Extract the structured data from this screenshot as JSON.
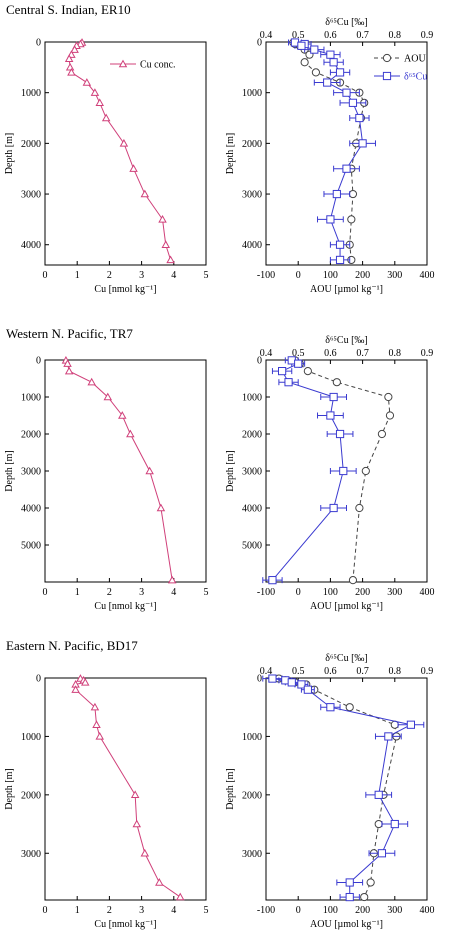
{
  "chart_data": [
    {
      "type": "line",
      "title": "Central S. Indian, ER10",
      "left": {
        "xlabel": "Cu [nmol kg⁻¹]",
        "ylabel": "Depth [m]",
        "xlim": [
          0,
          5
        ],
        "xticks": [
          "0",
          "1",
          "2",
          "3",
          "4",
          "5"
        ],
        "ylim": [
          0,
          4400
        ],
        "yticks": [
          "0",
          "1000",
          "2000",
          "3000",
          "4000"
        ],
        "legend": "Cu conc.",
        "series": [
          {
            "depth": 10,
            "cu": 1.15
          },
          {
            "depth": 40,
            "cu": 1.1
          },
          {
            "depth": 75,
            "cu": 0.98
          },
          {
            "depth": 150,
            "cu": 0.92
          },
          {
            "depth": 250,
            "cu": 0.82
          },
          {
            "depth": 330,
            "cu": 0.75
          },
          {
            "depth": 500,
            "cu": 0.78
          },
          {
            "depth": 600,
            "cu": 0.82
          },
          {
            "depth": 800,
            "cu": 1.3
          },
          {
            "depth": 1000,
            "cu": 1.55
          },
          {
            "depth": 1200,
            "cu": 1.7
          },
          {
            "depth": 1500,
            "cu": 1.9
          },
          {
            "depth": 2000,
            "cu": 2.45
          },
          {
            "depth": 2500,
            "cu": 2.75
          },
          {
            "depth": 3000,
            "cu": 3.1
          },
          {
            "depth": 3500,
            "cu": 3.65
          },
          {
            "depth": 4000,
            "cu": 3.75
          },
          {
            "depth": 4300,
            "cu": 3.9
          }
        ]
      },
      "right": {
        "toplabel": "δ⁶⁵Cu [‰]",
        "xlabel": "AOU [µmol kg⁻¹]",
        "ylabel": "Depth [m]",
        "topxlim": [
          0.4,
          0.9
        ],
        "topxticks": [
          "0.4",
          "0.5",
          "0.6",
          "0.7",
          "0.8",
          "0.9"
        ],
        "xlim": [
          -100,
          400
        ],
        "xticks": [
          "-100",
          "0",
          "100",
          "200",
          "300",
          "400"
        ],
        "ylim": [
          0,
          4400
        ],
        "yticks": [
          "0",
          "1000",
          "2000",
          "3000",
          "4000"
        ],
        "legend_aou": "AOU",
        "legend_d65": "δ⁶⁵Cu",
        "aou": [
          {
            "depth": 10,
            "aou": -15
          },
          {
            "depth": 40,
            "aou": -10
          },
          {
            "depth": 75,
            "aou": 5
          },
          {
            "depth": 150,
            "aou": 20
          },
          {
            "depth": 250,
            "aou": 35
          },
          {
            "depth": 400,
            "aou": 20
          },
          {
            "depth": 600,
            "aou": 55
          },
          {
            "depth": 800,
            "aou": 130
          },
          {
            "depth": 1000,
            "aou": 190
          },
          {
            "depth": 1200,
            "aou": 205
          },
          {
            "depth": 1500,
            "aou": 195
          },
          {
            "depth": 2000,
            "aou": 180
          },
          {
            "depth": 2500,
            "aou": 165
          },
          {
            "depth": 3000,
            "aou": 170
          },
          {
            "depth": 3500,
            "aou": 165
          },
          {
            "depth": 4000,
            "aou": 160
          },
          {
            "depth": 4300,
            "aou": 165
          }
        ],
        "d65": [
          {
            "depth": 10,
            "v": 0.49,
            "err": 0.02
          },
          {
            "depth": 40,
            "v": 0.52,
            "err": 0.02
          },
          {
            "depth": 75,
            "v": 0.51,
            "err": 0.02
          },
          {
            "depth": 150,
            "v": 0.55,
            "err": 0.03
          },
          {
            "depth": 250,
            "v": 0.6,
            "err": 0.03
          },
          {
            "depth": 400,
            "v": 0.61,
            "err": 0.03
          },
          {
            "depth": 600,
            "v": 0.63,
            "err": 0.03
          },
          {
            "depth": 800,
            "v": 0.59,
            "err": 0.04
          },
          {
            "depth": 1000,
            "v": 0.65,
            "err": 0.04
          },
          {
            "depth": 1200,
            "v": 0.67,
            "err": 0.04
          },
          {
            "depth": 1500,
            "v": 0.69,
            "err": 0.03
          },
          {
            "depth": 2000,
            "v": 0.7,
            "err": 0.04
          },
          {
            "depth": 2500,
            "v": 0.65,
            "err": 0.04
          },
          {
            "depth": 3000,
            "v": 0.62,
            "err": 0.04
          },
          {
            "depth": 3500,
            "v": 0.6,
            "err": 0.04
          },
          {
            "depth": 4000,
            "v": 0.63,
            "err": 0.03
          },
          {
            "depth": 4300,
            "v": 0.63,
            "err": 0.03
          }
        ]
      }
    },
    {
      "type": "line",
      "title": "Western N. Pacific, TR7",
      "left": {
        "xlabel": "Cu [nmol kg⁻¹]",
        "ylabel": "Depth [m]",
        "xlim": [
          0,
          5
        ],
        "xticks": [
          "0",
          "1",
          "2",
          "3",
          "4",
          "5"
        ],
        "ylim": [
          0,
          6000
        ],
        "yticks": [
          "0",
          "1000",
          "2000",
          "3000",
          "4000",
          "5000"
        ],
        "legend": "",
        "series": [
          {
            "depth": 10,
            "cu": 0.65
          },
          {
            "depth": 100,
            "cu": 0.7
          },
          {
            "depth": 300,
            "cu": 0.75
          },
          {
            "depth": 600,
            "cu": 1.45
          },
          {
            "depth": 1000,
            "cu": 1.95
          },
          {
            "depth": 1500,
            "cu": 2.4
          },
          {
            "depth": 2000,
            "cu": 2.65
          },
          {
            "depth": 3000,
            "cu": 3.25
          },
          {
            "depth": 4000,
            "cu": 3.6
          },
          {
            "depth": 5950,
            "cu": 3.95
          }
        ]
      },
      "right": {
        "toplabel": "δ⁶⁵Cu [‰]",
        "xlabel": "AOU [µmol kg⁻¹]",
        "ylabel": "Depth [m]",
        "topxlim": [
          0.4,
          0.9
        ],
        "topxticks": [
          "0.4",
          "0.5",
          "0.6",
          "0.7",
          "0.8",
          "0.9"
        ],
        "xlim": [
          -100,
          400
        ],
        "xticks": [
          "-100",
          "0",
          "100",
          "200",
          "300",
          "400"
        ],
        "ylim": [
          0,
          6000
        ],
        "yticks": [
          "0",
          "1000",
          "2000",
          "3000",
          "4000",
          "5000"
        ],
        "legend_aou": "",
        "legend_d65": "",
        "aou": [
          {
            "depth": 10,
            "aou": -10
          },
          {
            "depth": 100,
            "aou": 5
          },
          {
            "depth": 300,
            "aou": 30
          },
          {
            "depth": 600,
            "aou": 120
          },
          {
            "depth": 1000,
            "aou": 280
          },
          {
            "depth": 1500,
            "aou": 285
          },
          {
            "depth": 2000,
            "aou": 260
          },
          {
            "depth": 3000,
            "aou": 210
          },
          {
            "depth": 4000,
            "aou": 190
          },
          {
            "depth": 5950,
            "aou": 170
          }
        ],
        "d65": [
          {
            "depth": 10,
            "v": 0.48,
            "err": 0.02
          },
          {
            "depth": 100,
            "v": 0.5,
            "err": 0.02
          },
          {
            "depth": 300,
            "v": 0.45,
            "err": 0.03
          },
          {
            "depth": 600,
            "v": 0.47,
            "err": 0.03
          },
          {
            "depth": 1000,
            "v": 0.61,
            "err": 0.04
          },
          {
            "depth": 1500,
            "v": 0.6,
            "err": 0.04
          },
          {
            "depth": 2000,
            "v": 0.63,
            "err": 0.04
          },
          {
            "depth": 3000,
            "v": 0.64,
            "err": 0.04
          },
          {
            "depth": 4000,
            "v": 0.61,
            "err": 0.04
          },
          {
            "depth": 5950,
            "v": 0.42,
            "err": 0.03
          }
        ]
      }
    },
    {
      "type": "line",
      "title": "Eastern N. Pacific, BD17",
      "left": {
        "xlabel": "Cu [nmol kg⁻¹]",
        "ylabel": "Depth [m]",
        "xlim": [
          0,
          5
        ],
        "xticks": [
          "0",
          "1",
          "2",
          "3",
          "4",
          "5"
        ],
        "ylim": [
          0,
          3800
        ],
        "yticks": [
          "0",
          "1000",
          "2000",
          "3000"
        ],
        "legend": "",
        "series": [
          {
            "depth": 10,
            "cu": 1.1
          },
          {
            "depth": 40,
            "cu": 1.2
          },
          {
            "depth": 75,
            "cu": 1.25
          },
          {
            "depth": 110,
            "cu": 0.95
          },
          {
            "depth": 200,
            "cu": 0.95
          },
          {
            "depth": 500,
            "cu": 1.55
          },
          {
            "depth": 800,
            "cu": 1.6
          },
          {
            "depth": 1000,
            "cu": 1.7
          },
          {
            "depth": 2000,
            "cu": 2.8
          },
          {
            "depth": 2500,
            "cu": 2.85
          },
          {
            "depth": 3000,
            "cu": 3.1
          },
          {
            "depth": 3500,
            "cu": 3.55
          },
          {
            "depth": 3750,
            "cu": 4.2
          }
        ]
      },
      "right": {
        "toplabel": "δ⁶⁵Cu [‰]",
        "xlabel": "AOU [µmol kg⁻¹]",
        "ylabel": "Depth [m]",
        "topxlim": [
          0.4,
          0.9
        ],
        "topxticks": [
          "0.4",
          "0.5",
          "0.6",
          "0.7",
          "0.8",
          "0.9"
        ],
        "xlim": [
          -100,
          400
        ],
        "xticks": [
          "-100",
          "0",
          "100",
          "200",
          "300",
          "400"
        ],
        "ylim": [
          0,
          3800
        ],
        "yticks": [
          "0",
          "1000",
          "2000",
          "3000"
        ],
        "legend_aou": "",
        "legend_d65": "",
        "aou": [
          {
            "depth": 10,
            "aou": -60
          },
          {
            "depth": 40,
            "aou": -40
          },
          {
            "depth": 75,
            "aou": -10
          },
          {
            "depth": 110,
            "aou": 25
          },
          {
            "depth": 200,
            "aou": 50
          },
          {
            "depth": 500,
            "aou": 160
          },
          {
            "depth": 800,
            "aou": 300
          },
          {
            "depth": 1000,
            "aou": 305
          },
          {
            "depth": 2000,
            "aou": 265
          },
          {
            "depth": 2500,
            "aou": 250
          },
          {
            "depth": 3000,
            "aou": 235
          },
          {
            "depth": 3500,
            "aou": 225
          },
          {
            "depth": 3750,
            "aou": 205
          }
        ],
        "d65": [
          {
            "depth": 10,
            "v": 0.42,
            "err": 0.03
          },
          {
            "depth": 40,
            "v": 0.46,
            "err": 0.02
          },
          {
            "depth": 75,
            "v": 0.48,
            "err": 0.02
          },
          {
            "depth": 110,
            "v": 0.51,
            "err": 0.02
          },
          {
            "depth": 200,
            "v": 0.53,
            "err": 0.02
          },
          {
            "depth": 500,
            "v": 0.6,
            "err": 0.03
          },
          {
            "depth": 800,
            "v": 0.85,
            "err": 0.04
          },
          {
            "depth": 1000,
            "v": 0.78,
            "err": 0.04
          },
          {
            "depth": 2000,
            "v": 0.75,
            "err": 0.04
          },
          {
            "depth": 2500,
            "v": 0.8,
            "err": 0.04
          },
          {
            "depth": 3000,
            "v": 0.76,
            "err": 0.04
          },
          {
            "depth": 3500,
            "v": 0.66,
            "err": 0.04
          },
          {
            "depth": 3750,
            "v": 0.66,
            "err": 0.03
          }
        ]
      }
    }
  ]
}
